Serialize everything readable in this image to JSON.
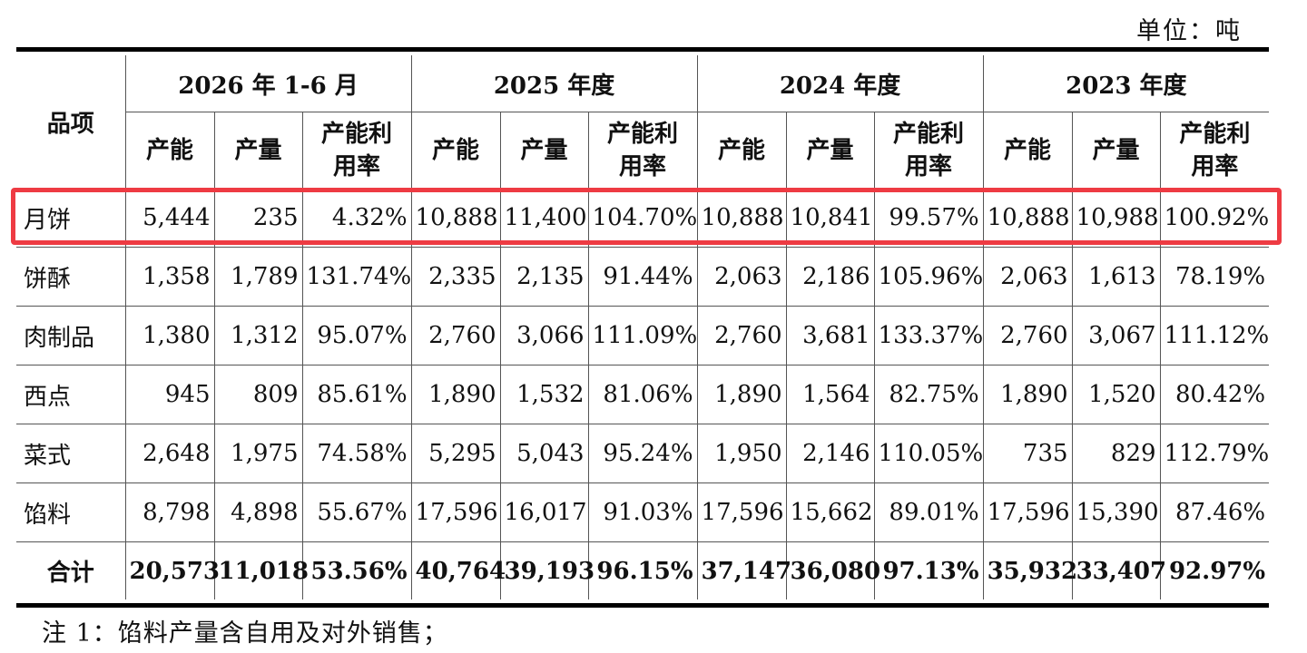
{
  "unit_label": "单位：吨",
  "header": {
    "item_label": "品项",
    "periods": [
      "2026 年 1-6 月",
      "2025 年度",
      "2024 年度",
      "2023 年度"
    ],
    "sub_columns": [
      "产能",
      "产量",
      "产能利用率"
    ]
  },
  "rows": [
    {
      "item": "月饼",
      "values": [
        "5,444",
        "235",
        "4.32%",
        "10,888",
        "11,400",
        "104.70%",
        "10,888",
        "10,841",
        "99.57%",
        "10,888",
        "10,988",
        "100.92%"
      ]
    },
    {
      "item": "饼酥",
      "values": [
        "1,358",
        "1,789",
        "131.74%",
        "2,335",
        "2,135",
        "91.44%",
        "2,063",
        "2,186",
        "105.96%",
        "2,063",
        "1,613",
        "78.19%"
      ]
    },
    {
      "item": "肉制品",
      "values": [
        "1,380",
        "1,312",
        "95.07%",
        "2,760",
        "3,066",
        "111.09%",
        "2,760",
        "3,681",
        "133.37%",
        "2,760",
        "3,067",
        "111.12%"
      ]
    },
    {
      "item": "西点",
      "values": [
        "945",
        "809",
        "85.61%",
        "1,890",
        "1,532",
        "81.06%",
        "1,890",
        "1,564",
        "82.75%",
        "1,890",
        "1,520",
        "80.42%"
      ]
    },
    {
      "item": "菜式",
      "values": [
        "2,648",
        "1,975",
        "74.58%",
        "5,295",
        "5,043",
        "95.24%",
        "1,950",
        "2,146",
        "110.05%",
        "735",
        "829",
        "112.79%"
      ]
    },
    {
      "item": "馅料",
      "values": [
        "8,798",
        "4,898",
        "55.67%",
        "17,596",
        "16,017",
        "91.03%",
        "17,596",
        "15,662",
        "89.01%",
        "17,596",
        "15,390",
        "87.46%"
      ]
    }
  ],
  "total": {
    "item": "合计",
    "values": [
      "20,573",
      "11,018",
      "53.56%",
      "40,764",
      "39,193",
      "96.15%",
      "37,147",
      "36,080",
      "97.13%",
      "35,932",
      "33,407",
      "92.97%"
    ]
  },
  "note": "注 1：馅料产量含自用及对外销售；",
  "highlight_color": "#ee3b43"
}
